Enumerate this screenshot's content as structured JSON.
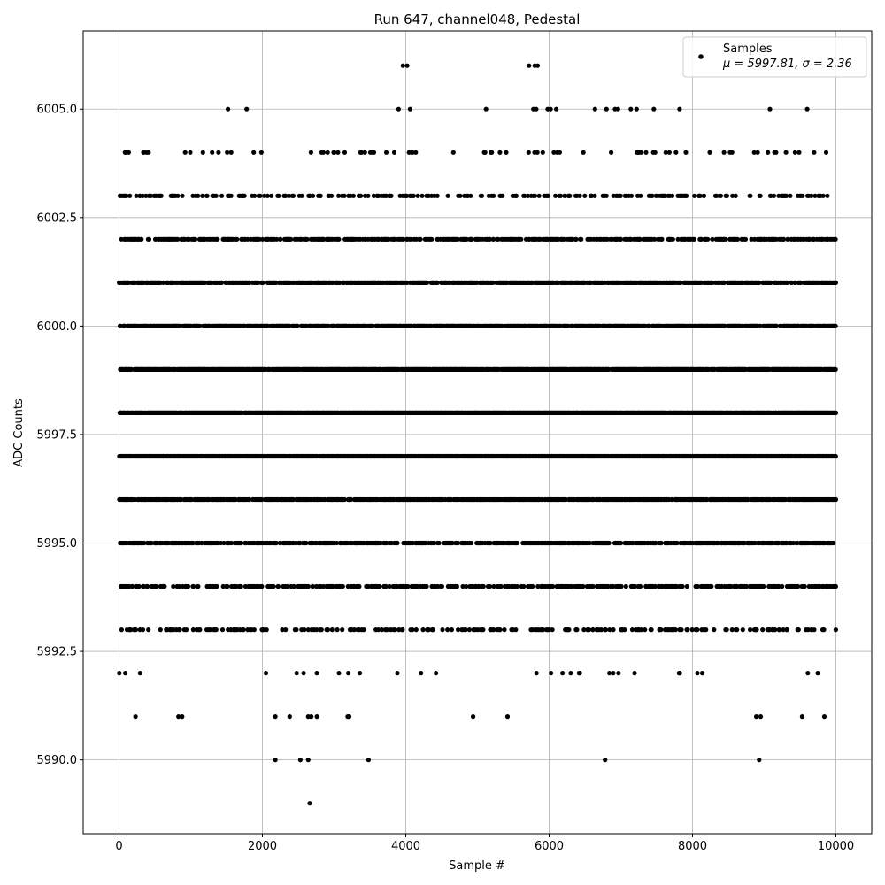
{
  "chart_data": {
    "type": "scatter",
    "title": "Run 647, channel048, Pedestal",
    "xlabel": "Sample #",
    "ylabel": "ADC Counts",
    "xlim": [
      -500,
      10500
    ],
    "ylim": [
      5988.3,
      6006.8
    ],
    "xticks": [
      0,
      2000,
      4000,
      6000,
      8000,
      10000
    ],
    "xtick_labels": [
      "0",
      "2000",
      "4000",
      "6000",
      "8000",
      "10000"
    ],
    "yticks": [
      5990.0,
      5992.5,
      5995.0,
      5997.5,
      6000.0,
      6002.5,
      6005.0
    ],
    "ytick_labels": [
      "5990.0",
      "5992.5",
      "5995.0",
      "5997.5",
      "6000.0",
      "6002.5",
      "6005.0"
    ],
    "grid": true,
    "legend_position": "top-right",
    "marker_color": "#000000",
    "series": [
      {
        "name": "Samples",
        "stats_label": "μ = 5997.81, σ = 2.36",
        "n_samples": 10000,
        "x_step": 10,
        "density_by_level": {
          "5989": 0.001,
          "5990": 0.004,
          "5991": 0.012,
          "5992": 0.04,
          "5993": 0.2,
          "5994": 0.4,
          "5995": 0.55,
          "5996": 0.75,
          "5997": 0.95,
          "5998": 0.97,
          "5999": 0.85,
          "6000": 0.75,
          "6001": 0.6,
          "6002": 0.45,
          "6003": 0.25,
          "6004": 0.07,
          "6005": 0.02,
          "6006": 0.006
        },
        "outliers": [
          [
            2660,
            5989
          ],
          [
            2180,
            5990
          ],
          [
            2530,
            5990
          ],
          [
            2640,
            5990
          ],
          [
            3480,
            5990
          ],
          [
            6780,
            5990
          ],
          [
            8930,
            5990
          ],
          [
            230,
            5991
          ],
          [
            830,
            5991
          ],
          [
            880,
            5991
          ],
          [
            2180,
            5991
          ],
          [
            2380,
            5991
          ],
          [
            2640,
            5991
          ],
          [
            2680,
            5991
          ],
          [
            2760,
            5991
          ],
          [
            3190,
            5991
          ],
          [
            3210,
            5991
          ],
          [
            4940,
            5991
          ],
          [
            5420,
            5991
          ],
          [
            8890,
            5991
          ],
          [
            8950,
            5991
          ],
          [
            9530,
            5991
          ],
          [
            9840,
            5991
          ],
          [
            1520,
            6005
          ],
          [
            1780,
            6005
          ],
          [
            3900,
            6005
          ],
          [
            4060,
            6005
          ],
          [
            5120,
            6005
          ],
          [
            5780,
            6005
          ],
          [
            5820,
            6005
          ],
          [
            5980,
            6005
          ],
          [
            6020,
            6005
          ],
          [
            6100,
            6005
          ],
          [
            6640,
            6005
          ],
          [
            6800,
            6005
          ],
          [
            6920,
            6005
          ],
          [
            6960,
            6005
          ],
          [
            7140,
            6005
          ],
          [
            7220,
            6005
          ],
          [
            7460,
            6005
          ],
          [
            7820,
            6005
          ],
          [
            9080,
            6005
          ],
          [
            9600,
            6005
          ],
          [
            3960,
            6006
          ],
          [
            4020,
            6006
          ],
          [
            5720,
            6006
          ],
          [
            5800,
            6006
          ],
          [
            5840,
            6006
          ]
        ]
      }
    ]
  }
}
